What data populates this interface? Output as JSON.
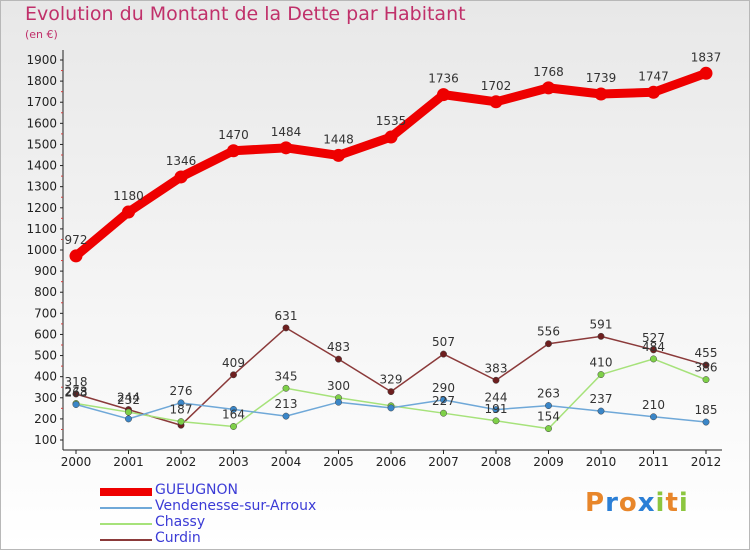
{
  "header": {
    "title": "Evolution du Montant de la Dette par Habitant",
    "unit": "(en €)"
  },
  "logo": {
    "letters": [
      "P",
      "r",
      "o",
      "x",
      "i",
      "t",
      "i"
    ],
    "colors": [
      "#e8862a",
      "#2b7fd6",
      "#e8862a",
      "#2b7fd6",
      "#8cc63f",
      "#e8862a",
      "#8cc63f"
    ]
  },
  "chart_data": {
    "type": "line",
    "x": [
      "2000",
      "2001",
      "2002",
      "2003",
      "2004",
      "2005",
      "2006",
      "2007",
      "2008",
      "2009",
      "2010",
      "2011",
      "2012"
    ],
    "ylim": [
      100,
      1900
    ],
    "yticks": [
      100,
      200,
      300,
      400,
      500,
      600,
      700,
      800,
      900,
      1000,
      1100,
      1200,
      1300,
      1400,
      1500,
      1600,
      1700,
      1800,
      1900
    ],
    "grid": false,
    "legend_position": "bottom-left",
    "series": [
      {
        "name": "GUEUGNON",
        "values": [
          972,
          1180,
          1346,
          1470,
          1484,
          1448,
          1535,
          1736,
          1702,
          1768,
          1739,
          1747,
          1837
        ],
        "color": "#ee0000",
        "fill": "#ee0000"
      },
      {
        "name": "Vendenesse-sur-Arroux",
        "values": [
          268,
          200,
          276,
          245,
          213,
          279,
          252,
          290,
          244,
          263,
          237,
          210,
          185
        ],
        "color": "#6fa8d8",
        "fill": "#3a86c8"
      },
      {
        "name": "Chassy",
        "values": [
          273,
          232,
          187,
          164,
          345,
          300,
          262,
          227,
          191,
          154,
          410,
          484,
          386
        ],
        "color": "#a6e27a",
        "fill": "#7ed048"
      },
      {
        "name": "Curdin",
        "values": [
          318,
          244,
          170,
          409,
          631,
          483,
          329,
          507,
          383,
          556,
          591,
          527,
          455
        ],
        "color": "#8b3a3a",
        "fill": "#6e1f1f"
      }
    ],
    "data_labels": {
      "GUEUGNON": [
        "972",
        "1180",
        "1346",
        "1470",
        "1484",
        "1448",
        "1535",
        "1736",
        "1702",
        "1768",
        "1739",
        "1747",
        "1837"
      ],
      "Vendenesse-sur-Arroux": [
        "268",
        "",
        "276",
        "",
        "213",
        "",
        "",
        "290",
        "244",
        "263",
        "237",
        "210",
        "185"
      ],
      "Chassy": [
        "273",
        "232",
        "187",
        "164",
        "345",
        "300",
        "",
        "227",
        "191",
        "154",
        "410",
        "484",
        "386"
      ],
      "Curdin": [
        "318",
        "244",
        "",
        "409",
        "631",
        "483",
        "329",
        "507",
        "383",
        "556",
        "591",
        "527",
        "455"
      ]
    }
  }
}
